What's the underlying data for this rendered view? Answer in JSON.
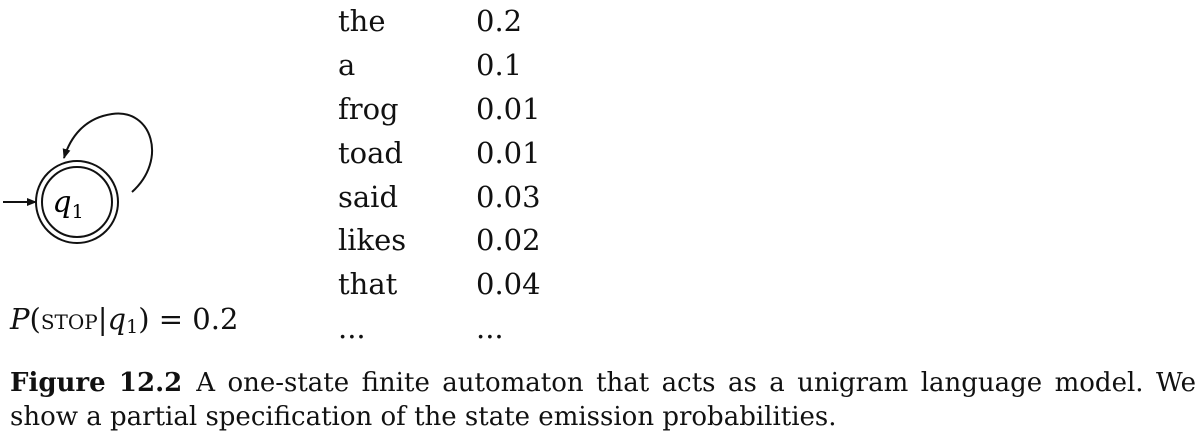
{
  "diagram": {
    "state": {
      "name": "q",
      "subscript": "1"
    },
    "stop_probability": {
      "function": "P",
      "open": "(",
      "stop": "stop",
      "bar": "|",
      "state": "q",
      "subscript": "1",
      "close": ")",
      "equals": " = ",
      "value": "0.2"
    }
  },
  "emissions": [
    {
      "word": "the",
      "prob": "0.2"
    },
    {
      "word": "a",
      "prob": "0.1"
    },
    {
      "word": "frog",
      "prob": "0.01"
    },
    {
      "word": "toad",
      "prob": "0.01"
    },
    {
      "word": "said",
      "prob": "0.03"
    },
    {
      "word": "likes",
      "prob": "0.02"
    },
    {
      "word": "that",
      "prob": "0.04"
    },
    {
      "word": "...",
      "prob": "..."
    }
  ],
  "caption": {
    "label": "Figure 12.2",
    "text": "A one-state finite automaton that acts as a unigram language model. We show a partial specification of the state emission probabilities."
  }
}
